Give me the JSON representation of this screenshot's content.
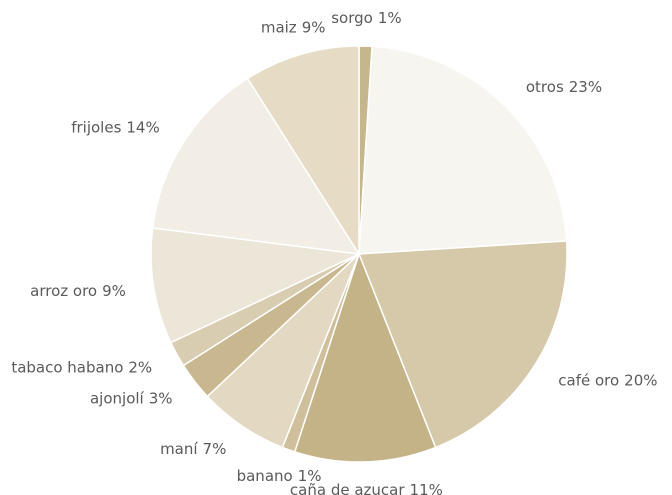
{
  "chart_data": {
    "type": "pie",
    "categories": [
      "sorgo",
      "otros",
      "café oro",
      "caña de azucar",
      "banano",
      "maní",
      "ajonjolí",
      "tabaco habano",
      "arroz oro",
      "frijoles",
      "maiz"
    ],
    "values": [
      1,
      23,
      20,
      11,
      1,
      7,
      3,
      2,
      9,
      14,
      9
    ],
    "value_labels": [
      "1%",
      "23%",
      "20%",
      "11%",
      "1%",
      "7%",
      "3%",
      "2%",
      "9%",
      "14%",
      "9%"
    ],
    "colors": [
      "#c6b68c",
      "#f7f5f0",
      "#d6c9a9",
      "#c4b387",
      "#cfc09b",
      "#e3d9c3",
      "#c9b88f",
      "#d9cdb1",
      "#ece6d8",
      "#f2eee6",
      "#e6dcc6"
    ]
  }
}
